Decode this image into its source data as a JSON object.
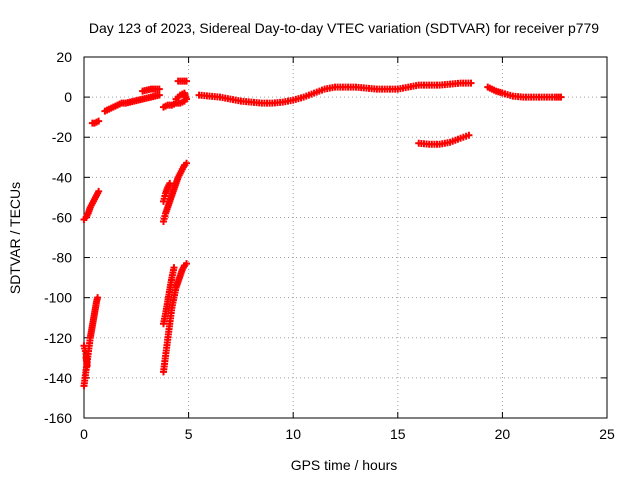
{
  "chart_data": {
    "type": "scatter",
    "title": "Day 123 of 2023, Sidereal Day-to-day VTEC variation (SDTVAR) for receiver p779",
    "xlabel": "GPS time / hours",
    "ylabel": "SDTVAR / TECUs",
    "xlim": [
      0,
      25
    ],
    "ylim": [
      -160,
      20
    ],
    "xticks": [
      0,
      5,
      10,
      15,
      20,
      25
    ],
    "yticks": [
      -160,
      -140,
      -120,
      -100,
      -80,
      -60,
      -40,
      -20,
      0,
      20
    ],
    "grid": true,
    "marker": "plus",
    "series": [
      {
        "name": "SDTVAR",
        "color": "#ff0000",
        "segments": [
          [
            [
              0.0,
              -61
            ],
            [
              0.1,
              -60
            ],
            [
              0.2,
              -58
            ],
            [
              0.3,
              -55
            ],
            [
              0.4,
              -53
            ],
            [
              0.5,
              -51
            ],
            [
              0.6,
              -49
            ],
            [
              0.7,
              -47
            ]
          ],
          [
            [
              0.0,
              -144
            ],
            [
              0.05,
              -140
            ],
            [
              0.1,
              -136
            ],
            [
              0.15,
              -132
            ],
            [
              0.2,
              -128
            ],
            [
              0.25,
              -124
            ],
            [
              0.3,
              -120
            ],
            [
              0.35,
              -117
            ],
            [
              0.4,
              -114
            ],
            [
              0.45,
              -111
            ],
            [
              0.5,
              -108
            ],
            [
              0.55,
              -105
            ],
            [
              0.6,
              -102
            ],
            [
              0.65,
              -100
            ]
          ],
          [
            [
              0.0,
              -124
            ],
            [
              0.1,
              -128
            ],
            [
              0.15,
              -134
            ],
            [
              0.1,
              -130
            ]
          ],
          [
            [
              0.4,
              -13
            ],
            [
              0.5,
              -13
            ],
            [
              0.6,
              -12.5
            ],
            [
              0.7,
              -12
            ]
          ],
          [
            [
              1.0,
              -7
            ],
            [
              1.2,
              -6
            ],
            [
              1.4,
              -5
            ],
            [
              1.6,
              -4
            ],
            [
              1.8,
              -3
            ],
            [
              2.0,
              -3
            ],
            [
              2.2,
              -2.5
            ],
            [
              2.4,
              -2
            ],
            [
              2.6,
              -1.5
            ],
            [
              2.8,
              -1
            ],
            [
              3.0,
              -0.5
            ],
            [
              3.2,
              0
            ],
            [
              3.4,
              0.5
            ],
            [
              3.6,
              1
            ]
          ],
          [
            [
              2.8,
              3
            ],
            [
              3.0,
              3.5
            ],
            [
              3.2,
              4
            ],
            [
              3.4,
              4
            ],
            [
              3.6,
              4
            ]
          ],
          [
            [
              3.8,
              -5
            ],
            [
              4.0,
              -4
            ],
            [
              4.2,
              -4
            ],
            [
              4.4,
              -3
            ],
            [
              4.6,
              -3
            ],
            [
              4.8,
              -2
            ],
            [
              4.9,
              -1
            ],
            [
              4.8,
              2
            ],
            [
              4.6,
              1
            ],
            [
              4.4,
              -1
            ]
          ],
          [
            [
              4.5,
              8
            ],
            [
              4.7,
              8
            ],
            [
              4.9,
              8
            ]
          ],
          [
            [
              3.8,
              -62
            ],
            [
              3.9,
              -58
            ],
            [
              4.0,
              -55
            ],
            [
              4.1,
              -52
            ],
            [
              4.2,
              -49
            ],
            [
              4.3,
              -46
            ],
            [
              4.4,
              -43
            ],
            [
              4.5,
              -40
            ],
            [
              4.6,
              -38
            ],
            [
              4.7,
              -36
            ],
            [
              4.8,
              -34
            ],
            [
              4.9,
              -33
            ]
          ],
          [
            [
              3.8,
              -52
            ],
            [
              3.9,
              -48
            ],
            [
              4.0,
              -45
            ],
            [
              4.1,
              -43
            ]
          ],
          [
            [
              3.8,
              -137
            ],
            [
              3.85,
              -133
            ],
            [
              3.9,
              -129
            ],
            [
              3.95,
              -125
            ],
            [
              4.0,
              -121
            ],
            [
              4.05,
              -117
            ],
            [
              4.1,
              -113
            ],
            [
              4.15,
              -109
            ],
            [
              4.2,
              -105
            ],
            [
              4.3,
              -100
            ],
            [
              4.4,
              -95
            ],
            [
              4.5,
              -92
            ],
            [
              4.6,
              -89
            ],
            [
              4.7,
              -86
            ],
            [
              4.8,
              -84
            ],
            [
              4.9,
              -83
            ]
          ],
          [
            [
              3.8,
              -113
            ],
            [
              3.9,
              -108
            ],
            [
              4.0,
              -102
            ],
            [
              4.1,
              -96
            ],
            [
              4.2,
              -90
            ],
            [
              4.3,
              -85
            ]
          ],
          [
            [
              5.5,
              1
            ],
            [
              6.0,
              0.5
            ],
            [
              6.5,
              0
            ],
            [
              7.0,
              -1
            ],
            [
              7.5,
              -2
            ],
            [
              8.0,
              -2.5
            ],
            [
              8.5,
              -3
            ],
            [
              9.0,
              -3
            ],
            [
              9.5,
              -2.5
            ],
            [
              10.0,
              -1.5
            ],
            [
              10.5,
              0
            ],
            [
              11.0,
              2
            ],
            [
              11.5,
              4
            ],
            [
              12.0,
              5
            ],
            [
              12.5,
              5
            ],
            [
              13.0,
              5
            ],
            [
              13.5,
              4.5
            ],
            [
              14.0,
              4
            ],
            [
              14.5,
              4
            ],
            [
              15.0,
              4
            ],
            [
              15.5,
              5
            ],
            [
              16.0,
              6
            ],
            [
              16.5,
              6
            ],
            [
              17.0,
              6
            ],
            [
              17.5,
              6.5
            ],
            [
              18.0,
              7
            ],
            [
              18.5,
              7
            ]
          ],
          [
            [
              16.0,
              -23
            ],
            [
              16.5,
              -23.5
            ],
            [
              17.0,
              -23.5
            ],
            [
              17.5,
              -22.5
            ],
            [
              18.0,
              -20.5
            ],
            [
              18.4,
              -19
            ]
          ],
          [
            [
              19.3,
              5
            ],
            [
              19.5,
              4
            ],
            [
              19.7,
              3
            ],
            [
              20.0,
              2
            ],
            [
              20.5,
              0.5
            ],
            [
              21.0,
              0
            ],
            [
              21.5,
              0
            ],
            [
              22.0,
              0
            ],
            [
              22.5,
              0
            ],
            [
              22.8,
              0
            ]
          ]
        ]
      }
    ]
  }
}
